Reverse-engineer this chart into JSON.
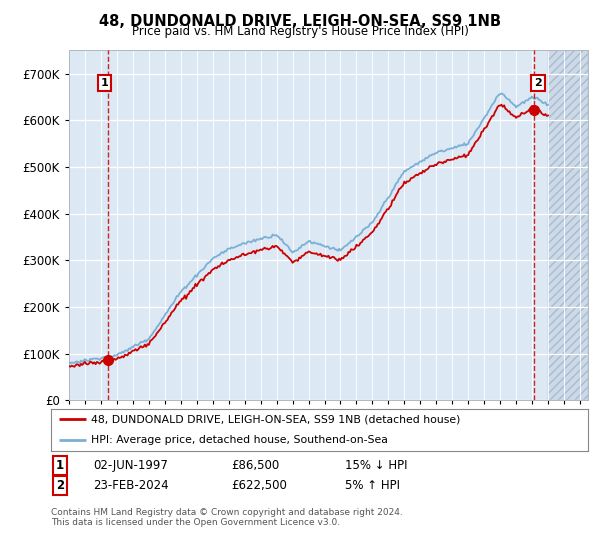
{
  "title": "48, DUNDONALD DRIVE, LEIGH-ON-SEA, SS9 1NB",
  "subtitle": "Price paid vs. HM Land Registry's House Price Index (HPI)",
  "ylim": [
    0,
    750000
  ],
  "yticks": [
    0,
    100000,
    200000,
    300000,
    400000,
    500000,
    600000,
    700000
  ],
  "ytick_labels": [
    "£0",
    "£100K",
    "£200K",
    "£300K",
    "£400K",
    "£500K",
    "£600K",
    "£700K"
  ],
  "sale1_year_f": 1997.458,
  "sale1_price": 86500,
  "sale2_year_f": 2024.125,
  "sale2_price": 622500,
  "legend_line1": "48, DUNDONALD DRIVE, LEIGH-ON-SEA, SS9 1NB (detached house)",
  "legend_line2": "HPI: Average price, detached house, Southend-on-Sea",
  "sale1_display": "02-JUN-1997",
  "sale1_price_str": "£86,500",
  "sale1_hpi": "15% ↓ HPI",
  "sale2_display": "23-FEB-2024",
  "sale2_price_str": "£622,500",
  "sale2_hpi": "5% ↑ HPI",
  "footnote": "Contains HM Land Registry data © Crown copyright and database right 2024.\nThis data is licensed under the Open Government Licence v3.0.",
  "bg_color": "#dce9f5",
  "grid_color": "#ffffff",
  "red_color": "#cc0000",
  "blue_color": "#7bafd4",
  "box_color": "#cc0000",
  "hatch_bg": "#ccd9e8",
  "xmin": 1995,
  "xmax": 2027.5
}
